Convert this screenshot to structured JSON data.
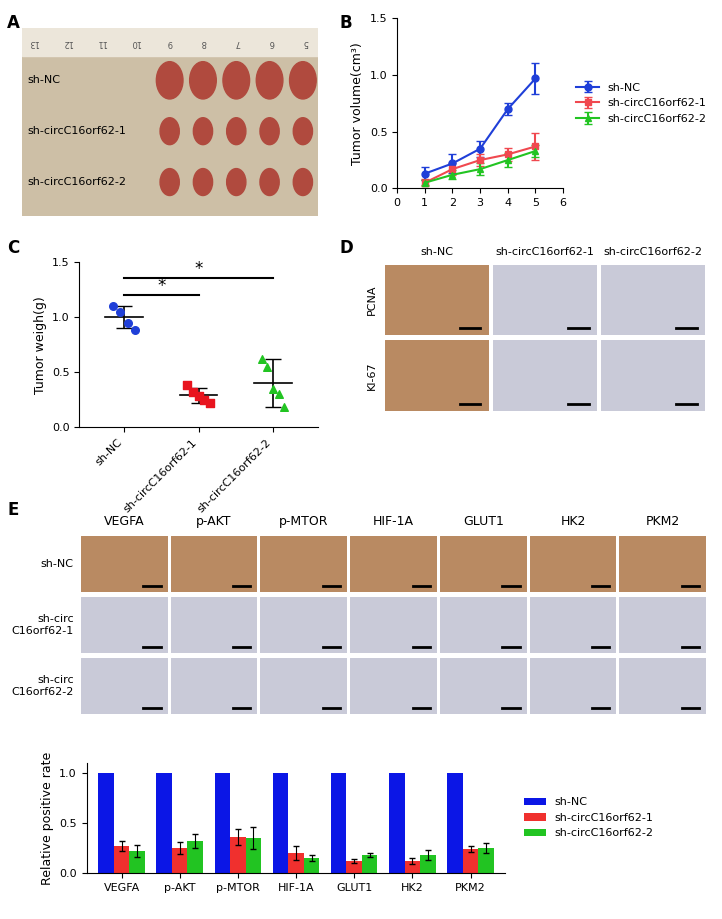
{
  "chart_data": [
    {
      "type": "line",
      "panel_label": "B",
      "y_label": "Tumor volume(cm³)",
      "x": [
        1,
        2,
        3,
        4,
        5
      ],
      "xlim": [
        0,
        6
      ],
      "xticks": [
        0,
        1,
        2,
        3,
        4,
        5,
        6
      ],
      "ylim": [
        0,
        1.5
      ],
      "yticks": [
        {
          "value": 0,
          "label": "0.0"
        },
        {
          "value": 0.5,
          "label": "0.5"
        },
        {
          "value": 1.0,
          "label": "1.0"
        },
        {
          "value": 1.5,
          "label": "1.5"
        }
      ],
      "legend": "right",
      "series": [
        {
          "name": "sh-NC",
          "color": "#1f3fd8",
          "marker": "circle",
          "values": [
            0.13,
            0.22,
            0.35,
            0.7,
            0.97
          ],
          "errors": [
            0.06,
            0.08,
            0.07,
            0.05,
            0.14
          ]
        },
        {
          "name": "sh-circC16orf62-1",
          "color": "#f0484f",
          "marker": "square",
          "values": [
            0.05,
            0.17,
            0.25,
            0.3,
            0.37
          ],
          "errors": [
            0.03,
            0.05,
            0.05,
            0.06,
            0.12
          ]
        },
        {
          "name": "sh-circC16orf62-2",
          "color": "#22c422",
          "marker": "triangle",
          "values": [
            0.05,
            0.12,
            0.17,
            0.25,
            0.33
          ],
          "errors": [
            0.02,
            0.04,
            0.05,
            0.06,
            0.05
          ]
        }
      ]
    },
    {
      "type": "scatter",
      "panel_label": "C",
      "y_label": "Tumor weigh(g)",
      "categories": [
        "sh-NC",
        "sh-circC16orf62-1",
        "sh-circC16orf62-2"
      ],
      "colors": [
        "#1f3fd8",
        "#e8141e",
        "#22c422"
      ],
      "markers": [
        "circle",
        "square",
        "triangle"
      ],
      "points": [
        [
          1.1,
          1.05,
          0.95,
          0.88
        ],
        [
          0.38,
          0.32,
          0.28,
          0.25,
          0.22
        ],
        [
          0.62,
          0.55,
          0.35,
          0.3,
          0.18
        ]
      ],
      "means": [
        1.0,
        0.29,
        0.4
      ],
      "sds": [
        0.1,
        0.07,
        0.22
      ],
      "ylim": [
        0,
        1.5
      ],
      "yticks": [
        {
          "value": 0,
          "label": "0.0"
        },
        {
          "value": 0.5,
          "label": "0.5"
        },
        {
          "value": 1.0,
          "label": "1.0"
        },
        {
          "value": 1.5,
          "label": "1.5"
        }
      ],
      "annotations": [
        {
          "from": 0,
          "to": 1,
          "text": "*"
        },
        {
          "from": 0,
          "to": 2,
          "text": "*"
        }
      ]
    },
    {
      "type": "bar",
      "y_label": "Relative positive rate",
      "categories": [
        "VEGFA",
        "p-AKT",
        "p-MTOR",
        "HIF-1A",
        "GLUT1",
        "HK2",
        "PKM2"
      ],
      "ylim": [
        0,
        1.1
      ],
      "yticks": [
        {
          "value": 0,
          "label": "0.0"
        },
        {
          "value": 0.5,
          "label": "0.5"
        },
        {
          "value": 1.0,
          "label": "1.0"
        }
      ],
      "legend": "right",
      "series": [
        {
          "name": "sh-NC",
          "color": "#0b16e6",
          "values": [
            1,
            1,
            1,
            1,
            1,
            1,
            1
          ]
        },
        {
          "name": "sh-circC16orf62-1",
          "color": "#f0302e",
          "values": [
            0.27,
            0.25,
            0.36,
            0.2,
            0.12,
            0.12,
            0.24
          ],
          "errors": [
            0.05,
            0.06,
            0.08,
            0.07,
            0.02,
            0.03,
            0.03
          ]
        },
        {
          "name": "sh-circC16orf62-2",
          "color": "#22c422",
          "values": [
            0.22,
            0.32,
            0.35,
            0.15,
            0.18,
            0.18,
            0.25
          ],
          "errors": [
            0.06,
            0.07,
            0.11,
            0.03,
            0.02,
            0.05,
            0.05
          ]
        }
      ]
    }
  ],
  "photo": {
    "panel_label": "A",
    "row_labels": [
      "sh-NC",
      "sh-circC16orf62-1",
      "sh-circC16orf62-2"
    ],
    "tumors_per_row": [
      5,
      5,
      5
    ],
    "ruler": [
      "13",
      "12",
      "11",
      "10",
      "9",
      "8",
      "7",
      "6",
      "5"
    ]
  },
  "ihc_D": {
    "panel_label": "D",
    "columns": [
      "sh-NC",
      "sh-circC16orf62-1",
      "sh-circC16orf62-2"
    ],
    "rows": [
      "PCNA",
      "KI-67"
    ]
  },
  "ihc_E": {
    "panel_label": "E",
    "columns": [
      "VEGFA",
      "p-AKT",
      "p-MTOR",
      "HIF-1A",
      "GLUT1",
      "HK2",
      "PKM2"
    ],
    "rows": [
      "sh-NC",
      "sh-circ\nC16orf62-1",
      "sh-circ\nC16orf62-2"
    ]
  }
}
